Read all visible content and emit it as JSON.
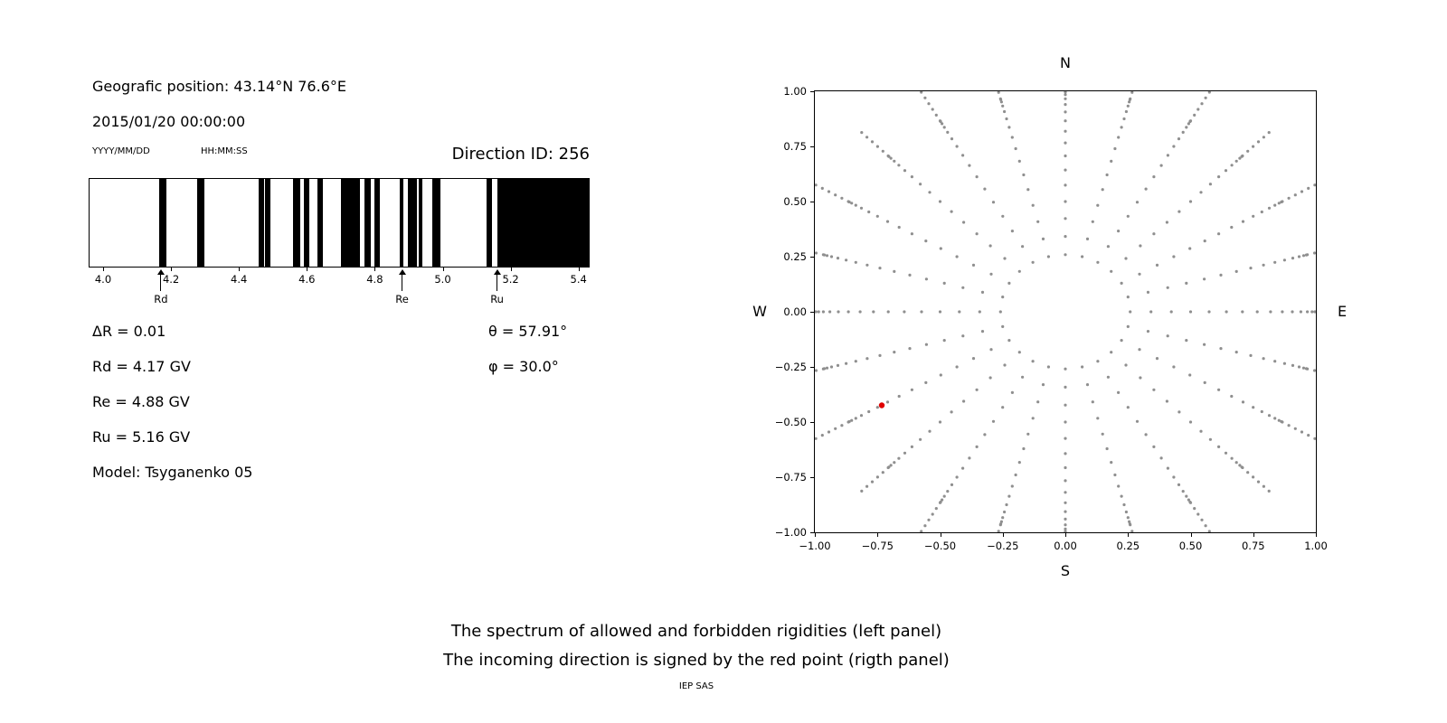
{
  "header": {
    "geographic_position": "Geografic position: 43.14°N 76.6°E",
    "datetime": "2015/01/20 00:00:00",
    "date_format": "YYYY/MM/DD",
    "time_format": "HH:MM:SS",
    "direction_id": "Direction ID: 256"
  },
  "left_panel": {
    "delta_r": "ΔR = 0.01",
    "rd": "Rd = 4.17 GV",
    "re": "Re = 4.88 GV",
    "ru": "Ru = 5.16 GV",
    "model": "Model: Tsyganenko 05",
    "theta": "θ = 57.91°",
    "phi": "φ = 30.0°"
  },
  "caption": {
    "line1": "The spectrum of allowed and forbidden rigidities (left panel)",
    "line2": "The incoming direction is signed by the red point (rigth panel)",
    "credit": "IEP SAS"
  },
  "chart_data": [
    {
      "id": "rigidity_spectrum",
      "type": "barcode",
      "xlabel": "",
      "ylabel": "",
      "xlim": [
        3.96,
        5.43
      ],
      "xticks": [
        {
          "value": 4.0,
          "label": "4.0"
        },
        {
          "value": 4.2,
          "label": "4.2"
        },
        {
          "value": 4.4,
          "label": "4.4"
        },
        {
          "value": 4.6,
          "label": "4.6"
        },
        {
          "value": 4.8,
          "label": "4.8"
        },
        {
          "value": 5.0,
          "label": "5.0"
        },
        {
          "value": 5.2,
          "label": "5.2"
        },
        {
          "value": 5.4,
          "label": "5.4"
        }
      ],
      "bar_color": "#000000",
      "allowed_bands": [
        [
          4.165,
          4.185
        ],
        [
          4.278,
          4.298
        ],
        [
          4.458,
          4.473
        ],
        [
          4.477,
          4.492
        ],
        [
          4.56,
          4.581
        ],
        [
          4.592,
          4.606
        ],
        [
          4.632,
          4.648
        ],
        [
          4.7,
          4.755
        ],
        [
          4.769,
          4.787
        ],
        [
          4.8,
          4.816
        ],
        [
          4.872,
          4.885
        ],
        [
          4.896,
          4.925
        ],
        [
          4.93,
          4.941
        ],
        [
          4.969,
          4.993
        ],
        [
          5.13,
          5.146
        ],
        [
          5.162,
          5.43
        ]
      ],
      "markers": [
        {
          "label": "Rd",
          "value": 4.17
        },
        {
          "label": "Re",
          "value": 4.88
        },
        {
          "label": "Ru",
          "value": 5.16
        }
      ]
    },
    {
      "id": "direction_map",
      "type": "scatter",
      "xlim": [
        -1.0,
        1.0
      ],
      "ylim": [
        -1.0,
        1.0
      ],
      "grid": false,
      "compass": {
        "north": "N",
        "south": "S",
        "east": "E",
        "west": "W"
      },
      "xticks": [
        {
          "value": -1.0,
          "label": "−1.00"
        },
        {
          "value": -0.75,
          "label": "−0.75"
        },
        {
          "value": -0.5,
          "label": "−0.50"
        },
        {
          "value": -0.25,
          "label": "−0.25"
        },
        {
          "value": 0.0,
          "label": "0.00"
        },
        {
          "value": 0.25,
          "label": "0.25"
        },
        {
          "value": 0.5,
          "label": "0.50"
        },
        {
          "value": 0.75,
          "label": "0.75"
        },
        {
          "value": 1.0,
          "label": "1.00"
        }
      ],
      "yticks": [
        {
          "value": 1.0,
          "label": "1.00"
        },
        {
          "value": 0.75,
          "label": "0.75"
        },
        {
          "value": 0.5,
          "label": "0.50"
        },
        {
          "value": 0.25,
          "label": "0.25"
        },
        {
          "value": 0.0,
          "label": "0.00"
        },
        {
          "value": -0.25,
          "label": "−0.25"
        },
        {
          "value": -0.5,
          "label": "−0.50"
        },
        {
          "value": -0.75,
          "label": "−0.75"
        },
        {
          "value": -1.0,
          "label": "−1.00"
        }
      ],
      "spoke_angles_deg": [
        0,
        15,
        30,
        45,
        60,
        75,
        90,
        105,
        120,
        135,
        150,
        165,
        180,
        195,
        210,
        225,
        240,
        255,
        270,
        285,
        300,
        315,
        330,
        345
      ],
      "spoke_radii": [
        0.259,
        0.342,
        0.423,
        0.5,
        0.574,
        0.643,
        0.707,
        0.766,
        0.819,
        0.866,
        0.906,
        0.94,
        0.966,
        0.985,
        0.996,
        1.0,
        1.03,
        1.06,
        1.09,
        1.12,
        1.15
      ],
      "dot_color": "#8f8f8f",
      "dot_radius_px": 1.6,
      "red_point": {
        "x": -0.733,
        "y": -0.424,
        "color": "#e00000",
        "radius_px": 3.2
      }
    }
  ]
}
